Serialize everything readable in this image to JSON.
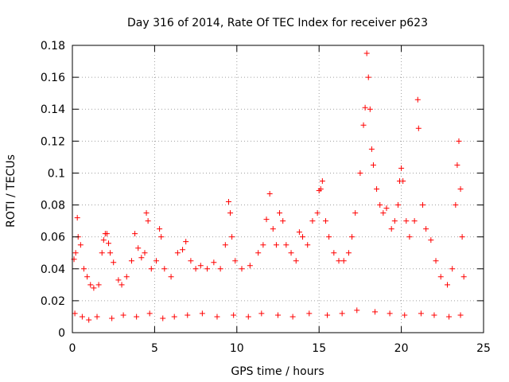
{
  "chart_data": {
    "type": "scatter",
    "title": "Day 316 of 2014, Rate Of TEC Index for receiver p623",
    "xlabel": "GPS time / hours",
    "ylabel": "ROTI / TECUs",
    "xlim": [
      0,
      25
    ],
    "ylim": [
      0,
      0.18
    ],
    "xticks": [
      0,
      5,
      10,
      15,
      20,
      25
    ],
    "yticks": [
      0,
      0.02,
      0.04,
      0.06,
      0.08,
      0.1,
      0.12,
      0.14,
      0.16,
      0.18
    ],
    "xtick_labels": [
      "0",
      "5",
      "10",
      "15",
      "20",
      "25"
    ],
    "ytick_labels": [
      "0",
      "0.02",
      "0.04",
      "0.06",
      "0.08",
      "0.1",
      "0.12",
      "0.14",
      "0.16",
      "0.18"
    ],
    "grid": true,
    "marker": "+",
    "color": "#ff0000",
    "series": [
      {
        "name": "ROTI",
        "points": [
          [
            0.1,
            0.046
          ],
          [
            0.2,
            0.05
          ],
          [
            0.3,
            0.072
          ],
          [
            0.35,
            0.06
          ],
          [
            0.5,
            0.055
          ],
          [
            0.7,
            0.04
          ],
          [
            0.9,
            0.035
          ],
          [
            1.1,
            0.03
          ],
          [
            1.3,
            0.028
          ],
          [
            1.6,
            0.03
          ],
          [
            1.8,
            0.05
          ],
          [
            1.9,
            0.058
          ],
          [
            2.0,
            0.062
          ],
          [
            2.1,
            0.062
          ],
          [
            2.2,
            0.056
          ],
          [
            2.3,
            0.05
          ],
          [
            2.5,
            0.044
          ],
          [
            2.8,
            0.033
          ],
          [
            3.0,
            0.03
          ],
          [
            3.3,
            0.035
          ],
          [
            3.6,
            0.045
          ],
          [
            3.8,
            0.062
          ],
          [
            4.0,
            0.053
          ],
          [
            4.2,
            0.047
          ],
          [
            4.4,
            0.05
          ],
          [
            4.5,
            0.075
          ],
          [
            4.6,
            0.07
          ],
          [
            4.8,
            0.04
          ],
          [
            5.1,
            0.045
          ],
          [
            5.3,
            0.065
          ],
          [
            5.4,
            0.06
          ],
          [
            5.6,
            0.04
          ],
          [
            6.0,
            0.035
          ],
          [
            6.4,
            0.05
          ],
          [
            6.7,
            0.052
          ],
          [
            6.9,
            0.057
          ],
          [
            7.2,
            0.045
          ],
          [
            7.5,
            0.04
          ],
          [
            7.8,
            0.042
          ],
          [
            8.2,
            0.04
          ],
          [
            8.6,
            0.044
          ],
          [
            9.0,
            0.04
          ],
          [
            9.3,
            0.055
          ],
          [
            9.5,
            0.082
          ],
          [
            9.6,
            0.075
          ],
          [
            9.7,
            0.06
          ],
          [
            9.9,
            0.045
          ],
          [
            10.3,
            0.04
          ],
          [
            10.8,
            0.042
          ],
          [
            11.3,
            0.05
          ],
          [
            11.6,
            0.055
          ],
          [
            11.8,
            0.071
          ],
          [
            12.0,
            0.087
          ],
          [
            12.2,
            0.065
          ],
          [
            12.4,
            0.055
          ],
          [
            12.6,
            0.075
          ],
          [
            12.8,
            0.07
          ],
          [
            13.0,
            0.055
          ],
          [
            13.3,
            0.05
          ],
          [
            13.6,
            0.045
          ],
          [
            13.8,
            0.063
          ],
          [
            14.0,
            0.06
          ],
          [
            14.3,
            0.055
          ],
          [
            14.6,
            0.07
          ],
          [
            14.9,
            0.075
          ],
          [
            15.0,
            0.089
          ],
          [
            15.1,
            0.09
          ],
          [
            15.2,
            0.095
          ],
          [
            15.4,
            0.07
          ],
          [
            15.6,
            0.06
          ],
          [
            15.9,
            0.05
          ],
          [
            16.2,
            0.045
          ],
          [
            16.5,
            0.045
          ],
          [
            16.8,
            0.05
          ],
          [
            17.0,
            0.06
          ],
          [
            17.2,
            0.075
          ],
          [
            17.5,
            0.1
          ],
          [
            17.7,
            0.13
          ],
          [
            17.8,
            0.141
          ],
          [
            17.9,
            0.175
          ],
          [
            18.0,
            0.16
          ],
          [
            18.1,
            0.14
          ],
          [
            18.2,
            0.115
          ],
          [
            18.3,
            0.105
          ],
          [
            18.5,
            0.09
          ],
          [
            18.7,
            0.08
          ],
          [
            18.9,
            0.075
          ],
          [
            19.1,
            0.078
          ],
          [
            19.4,
            0.065
          ],
          [
            19.6,
            0.07
          ],
          [
            19.8,
            0.08
          ],
          [
            19.9,
            0.095
          ],
          [
            20.0,
            0.103
          ],
          [
            20.1,
            0.095
          ],
          [
            20.3,
            0.07
          ],
          [
            20.5,
            0.06
          ],
          [
            20.8,
            0.07
          ],
          [
            21.0,
            0.146
          ],
          [
            21.05,
            0.128
          ],
          [
            21.3,
            0.08
          ],
          [
            21.5,
            0.065
          ],
          [
            21.8,
            0.058
          ],
          [
            22.1,
            0.045
          ],
          [
            22.4,
            0.035
          ],
          [
            22.8,
            0.03
          ],
          [
            23.1,
            0.04
          ],
          [
            23.3,
            0.08
          ],
          [
            23.4,
            0.105
          ],
          [
            23.5,
            0.12
          ],
          [
            23.6,
            0.09
          ],
          [
            23.7,
            0.06
          ],
          [
            23.8,
            0.035
          ],
          [
            0.15,
            0.012
          ],
          [
            0.6,
            0.01
          ],
          [
            1.0,
            0.008
          ],
          [
            1.5,
            0.01
          ],
          [
            2.4,
            0.009
          ],
          [
            3.1,
            0.011
          ],
          [
            3.9,
            0.01
          ],
          [
            4.7,
            0.012
          ],
          [
            5.5,
            0.009
          ],
          [
            6.2,
            0.01
          ],
          [
            7.0,
            0.011
          ],
          [
            7.9,
            0.012
          ],
          [
            8.8,
            0.01
          ],
          [
            9.8,
            0.011
          ],
          [
            10.7,
            0.01
          ],
          [
            11.5,
            0.012
          ],
          [
            12.5,
            0.011
          ],
          [
            13.4,
            0.01
          ],
          [
            14.4,
            0.012
          ],
          [
            15.5,
            0.011
          ],
          [
            16.4,
            0.012
          ],
          [
            17.3,
            0.014
          ],
          [
            18.4,
            0.013
          ],
          [
            19.3,
            0.012
          ],
          [
            20.2,
            0.011
          ],
          [
            21.2,
            0.012
          ],
          [
            22.0,
            0.011
          ],
          [
            22.9,
            0.01
          ],
          [
            23.6,
            0.011
          ]
        ]
      }
    ]
  }
}
